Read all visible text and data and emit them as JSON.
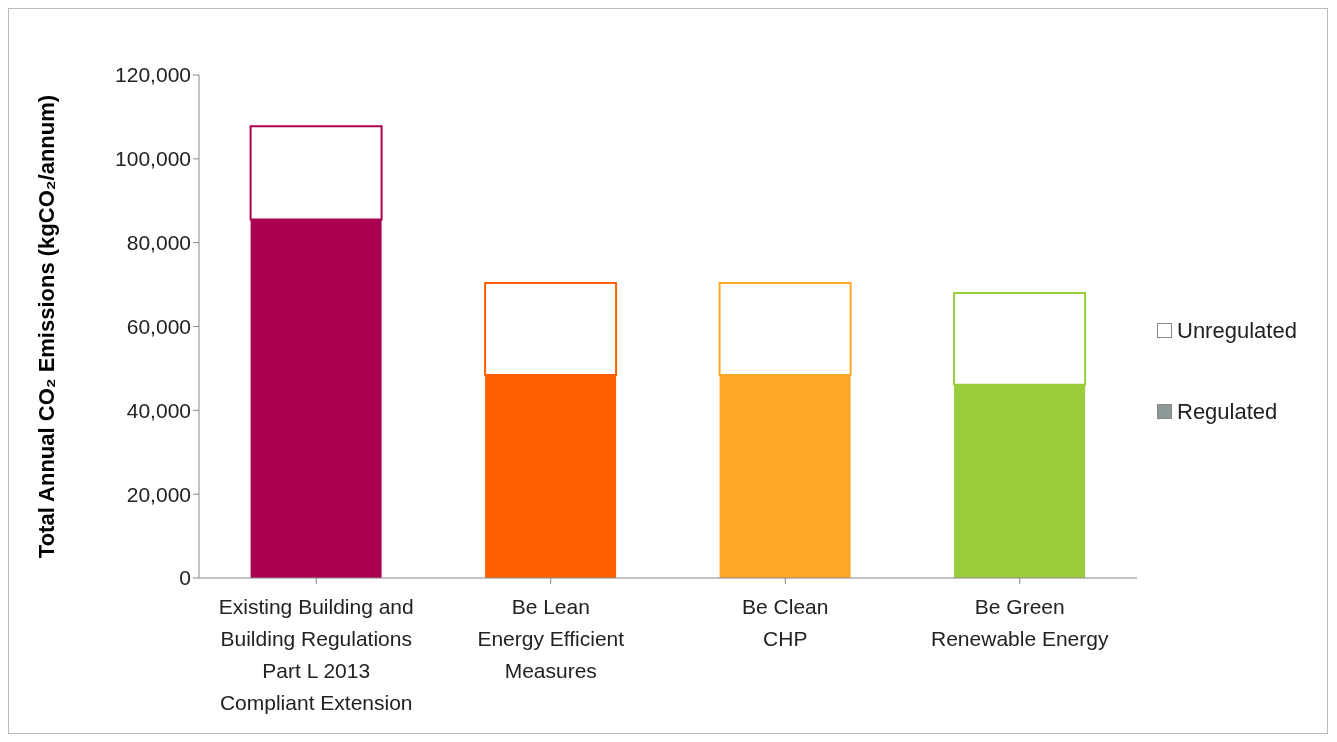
{
  "chart_data": {
    "type": "bar",
    "stacked": true,
    "ylabel": "Total Annual CO₂ Emissions (kgCO₂/annum)",
    "categories": [
      "Existing Building and\nBuilding Regulations\nPart L 2013\nCompliant Extension",
      "Be Lean\nEnergy Efficient\nMeasures",
      "Be Clean\nCHP",
      "Be Green\nRenewable Energy"
    ],
    "series": [
      {
        "name": "Regulated",
        "color": "#8e9a9a",
        "colors": [
          "#aa0050",
          "#ff5f00",
          "#ffa726",
          "#9acd3a"
        ],
        "values": [
          85500,
          48400,
          48400,
          46100
        ]
      },
      {
        "name": "Unregulated",
        "color": "#ffffff",
        "values": [
          22300,
          22000,
          22000,
          21900
        ]
      }
    ],
    "ylim": [
      0,
      120000
    ],
    "yticks": [
      {
        "value": 0,
        "label": "0"
      },
      {
        "value": 20000,
        "label": "20,000"
      },
      {
        "value": 40000,
        "label": "40,000"
      },
      {
        "value": 60000,
        "label": "60,000"
      },
      {
        "value": 80000,
        "label": "80,000"
      },
      {
        "value": 100000,
        "label": "100,000"
      },
      {
        "value": 120000,
        "label": "120,000"
      }
    ],
    "legend": "right",
    "grid": false
  }
}
